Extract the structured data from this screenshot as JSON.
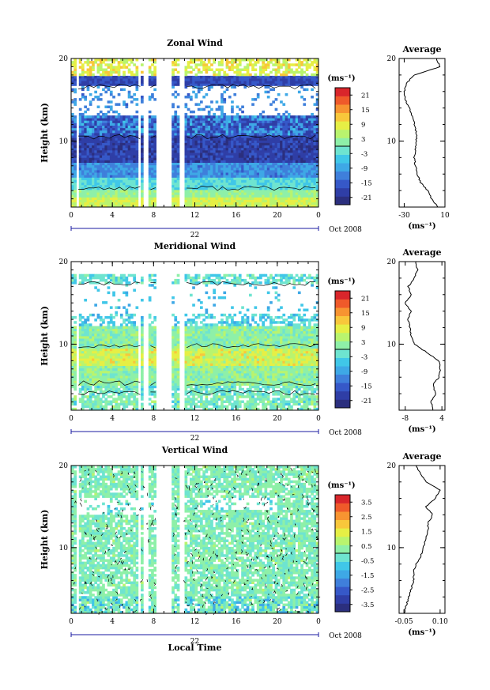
{
  "figure": {
    "x_axis_label": "Local Time",
    "date_label": "Oct 2008",
    "day_label": "22",
    "y_axis_label": "Height (km)"
  },
  "chart_data": [
    {
      "type": "heatmap",
      "title": "Zonal Wind",
      "ylabel": "Height (km)",
      "xlabel": "Local Time",
      "x_ticks": [
        "0",
        "4",
        "8",
        "12",
        "16",
        "20",
        "0"
      ],
      "y_ticks": [
        "20",
        "10"
      ],
      "xlim": [
        0,
        24
      ],
      "ylim": [
        2,
        20
      ],
      "colorbar": {
        "unit": "(ms⁻¹)",
        "ticks": [
          "21",
          "15",
          "9",
          "3",
          "-3",
          "-9",
          "-15",
          "-21"
        ],
        "range": [
          -24,
          24
        ],
        "zero_line": true
      },
      "gaps_hours": [
        [
          0.4,
          0.7
        ],
        [
          6.4,
          6.7
        ],
        [
          7.0,
          7.4
        ],
        [
          8.3,
          9.8
        ],
        [
          10.4,
          11.0
        ]
      ],
      "profile_levels_km": [
        2,
        3,
        4,
        5,
        6,
        7,
        8,
        9,
        10,
        11,
        12,
        13,
        14,
        15,
        16,
        17,
        18,
        19,
        20
      ]
    },
    {
      "type": "heatmap",
      "title": "Meridional Wind",
      "ylabel": "Height (km)",
      "xlabel": "Local Time",
      "x_ticks": [
        "0",
        "4",
        "8",
        "12",
        "16",
        "20",
        "0"
      ],
      "y_ticks": [
        "20",
        "10"
      ],
      "xlim": [
        0,
        24
      ],
      "ylim": [
        2,
        20
      ],
      "colorbar": {
        "unit": "(ms⁻¹)",
        "ticks": [
          "21",
          "15",
          "9",
          "3",
          "-3",
          "-9",
          "-15",
          "-21"
        ],
        "range": [
          -24,
          24
        ],
        "zero_line": true
      },
      "gaps_hours": [
        [
          0.4,
          0.7
        ],
        [
          6.4,
          6.7
        ],
        [
          7.0,
          7.4
        ],
        [
          8.3,
          9.8
        ],
        [
          10.4,
          11.0
        ]
      ]
    },
    {
      "type": "heatmap",
      "title": "Vertical Wind",
      "ylabel": "Height (km)",
      "xlabel": "Local Time",
      "x_ticks": [
        "0",
        "4",
        "8",
        "12",
        "16",
        "20",
        "0"
      ],
      "y_ticks": [
        "20",
        "10"
      ],
      "xlim": [
        0,
        24
      ],
      "ylim": [
        2,
        20
      ],
      "colorbar": {
        "unit": "(ms⁻¹)",
        "ticks": [
          "3.5",
          "2.5",
          "1.5",
          "0.5",
          "-0.5",
          "-1.5",
          "-2.5",
          "-3.5"
        ],
        "range": [
          -4,
          4
        ],
        "zero_line": true
      },
      "gaps_hours": [
        [
          0.4,
          0.7
        ],
        [
          6.4,
          6.7
        ],
        [
          7.0,
          7.4
        ],
        [
          8.3,
          9.8
        ],
        [
          10.4,
          11.0
        ]
      ]
    },
    {
      "type": "line",
      "title": "Average",
      "ylabel": "",
      "xlabel": "(ms⁻¹)",
      "x_ticks": [
        "-30",
        "10"
      ],
      "y_ticks": [
        "20",
        "10"
      ],
      "xlim": [
        -35,
        10
      ],
      "ylim": [
        2,
        20
      ],
      "x": [
        3,
        -3,
        -7,
        -14,
        -17,
        -19,
        -20,
        -19,
        -18,
        -18,
        -20,
        -22,
        -25,
        -29,
        -30,
        -28,
        -20,
        5,
        2
      ],
      "y": [
        2,
        3,
        4,
        5,
        6,
        7,
        8,
        9,
        10,
        11,
        12,
        13,
        14,
        15,
        16,
        17,
        18,
        19,
        20
      ]
    },
    {
      "type": "line",
      "title": "Average",
      "ylabel": "",
      "xlabel": "(ms⁻¹)",
      "x_ticks": [
        "-8",
        "4"
      ],
      "y_ticks": [
        "20",
        "10"
      ],
      "xlim": [
        -10,
        5
      ],
      "ylim": [
        2,
        20
      ],
      "x": [
        1,
        0.5,
        2,
        1,
        3,
        3.5,
        3,
        -1,
        -5,
        -6,
        -6.5,
        -7,
        -6,
        -8,
        -6,
        -7,
        -5,
        -4,
        -4.5
      ],
      "y": [
        2,
        3,
        4,
        5,
        6,
        7,
        8,
        9,
        10,
        11,
        12,
        13,
        14,
        15,
        16,
        17,
        18,
        19,
        20
      ]
    },
    {
      "type": "line",
      "title": "Average",
      "ylabel": "",
      "xlabel": "(ms⁻¹)",
      "x_ticks": [
        "-0.05",
        "0.10"
      ],
      "y_ticks": [
        "20",
        "10"
      ],
      "xlim": [
        -0.07,
        0.12
      ],
      "ylim": [
        2,
        20
      ],
      "x": [
        -0.05,
        -0.04,
        -0.03,
        -0.02,
        -0.01,
        -0.01,
        0.0,
        0.02,
        0.03,
        0.04,
        0.05,
        0.05,
        0.07,
        0.04,
        0.08,
        0.1,
        0.04,
        0.02,
        0.0
      ],
      "y": [
        2,
        3,
        4,
        5,
        6,
        7,
        8,
        9,
        10,
        11,
        12,
        13,
        14,
        15,
        16,
        17,
        18,
        19,
        20
      ]
    }
  ]
}
